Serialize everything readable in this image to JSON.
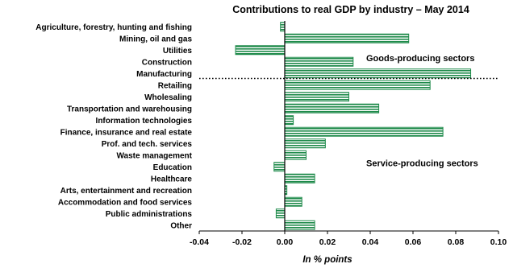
{
  "chart_data": {
    "type": "bar",
    "orientation": "horizontal",
    "title": "Contributions to real GDP by industry – May 2014",
    "xlabel": "In % points",
    "ylabel": "",
    "xlim": [
      -0.04,
      0.1
    ],
    "x_ticks": [
      "-0.04",
      "-0.02",
      "0.00",
      "0.02",
      "0.04",
      "0.06",
      "0.08",
      "0.10"
    ],
    "x_tick_values": [
      -0.04,
      -0.02,
      0.0,
      0.02,
      0.04,
      0.06,
      0.08,
      0.1
    ],
    "grid": false,
    "bar_color": "#1e8a4a",
    "bar_fill": "horizontal-stripes",
    "categories": [
      "Agriculture, forestry, hunting and fishing",
      "Mining, oil and gas",
      "Utilities",
      "Construction",
      "Manufacturing",
      "Retailing",
      "Wholesaling",
      "Transportation and warehousing",
      "Information technologies",
      "Finance, insurance and real estate",
      "Prof. and tech. services",
      "Waste management",
      "Education",
      "Healthcare",
      "Arts, entertainment and recreation",
      "Accommodation and food services",
      "Public administrations",
      "Other"
    ],
    "values": [
      -0.002,
      0.058,
      -0.023,
      0.032,
      0.087,
      0.068,
      0.03,
      0.044,
      0.004,
      0.074,
      0.019,
      0.01,
      -0.005,
      0.014,
      0.001,
      0.008,
      -0.004,
      0.014
    ],
    "divider_after_category": "Manufacturing",
    "annotations": [
      {
        "text": "Goods-producing sectors",
        "anchor_category": "Construction"
      },
      {
        "text": "Service-producing sectors",
        "anchor_category": "Education"
      }
    ]
  }
}
